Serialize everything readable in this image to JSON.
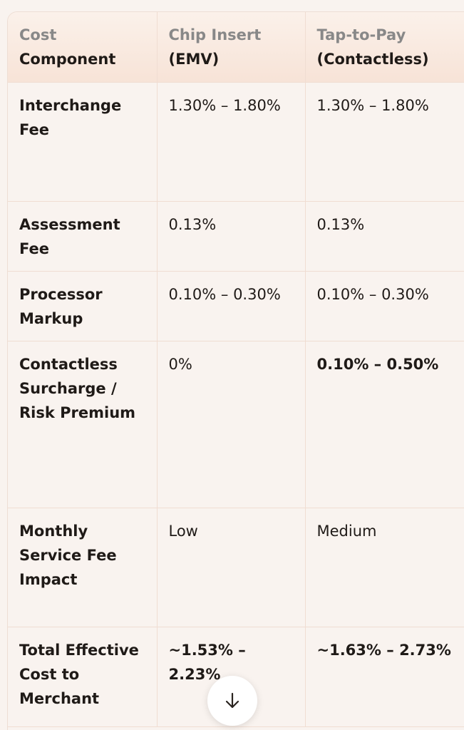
{
  "table": {
    "headers": [
      {
        "line1": "Cost",
        "line2": "Component"
      },
      {
        "line1": "Chip Insert",
        "line2": "(EMV)"
      },
      {
        "line1": "Tap-to-Pay",
        "line2": "(Contactless)"
      }
    ],
    "rows": [
      {
        "component": "Interchange Fee",
        "chip": "1.30% – 1.80%",
        "tap": "1.30% – 1.80%"
      },
      {
        "component": "Assessment Fee",
        "chip": "0.13%",
        "tap": "0.13%"
      },
      {
        "component": "Processor Markup",
        "chip": "0.10% – 0.30%",
        "tap": "0.10% – 0.30%"
      },
      {
        "component": "Contactless Surcharge / Risk Premium",
        "chip": "0%",
        "tap": "0.10% – 0.50%"
      },
      {
        "component": "Monthly Service Fee Impact",
        "chip": "Low",
        "tap": "Medium"
      },
      {
        "component": "Total Effective Cost to Merchant",
        "chip": "~1.53% – 2.23%",
        "tap": "~1.63% – 2.73%"
      }
    ]
  },
  "scroll_button": {
    "icon": "arrow-down-icon"
  }
}
